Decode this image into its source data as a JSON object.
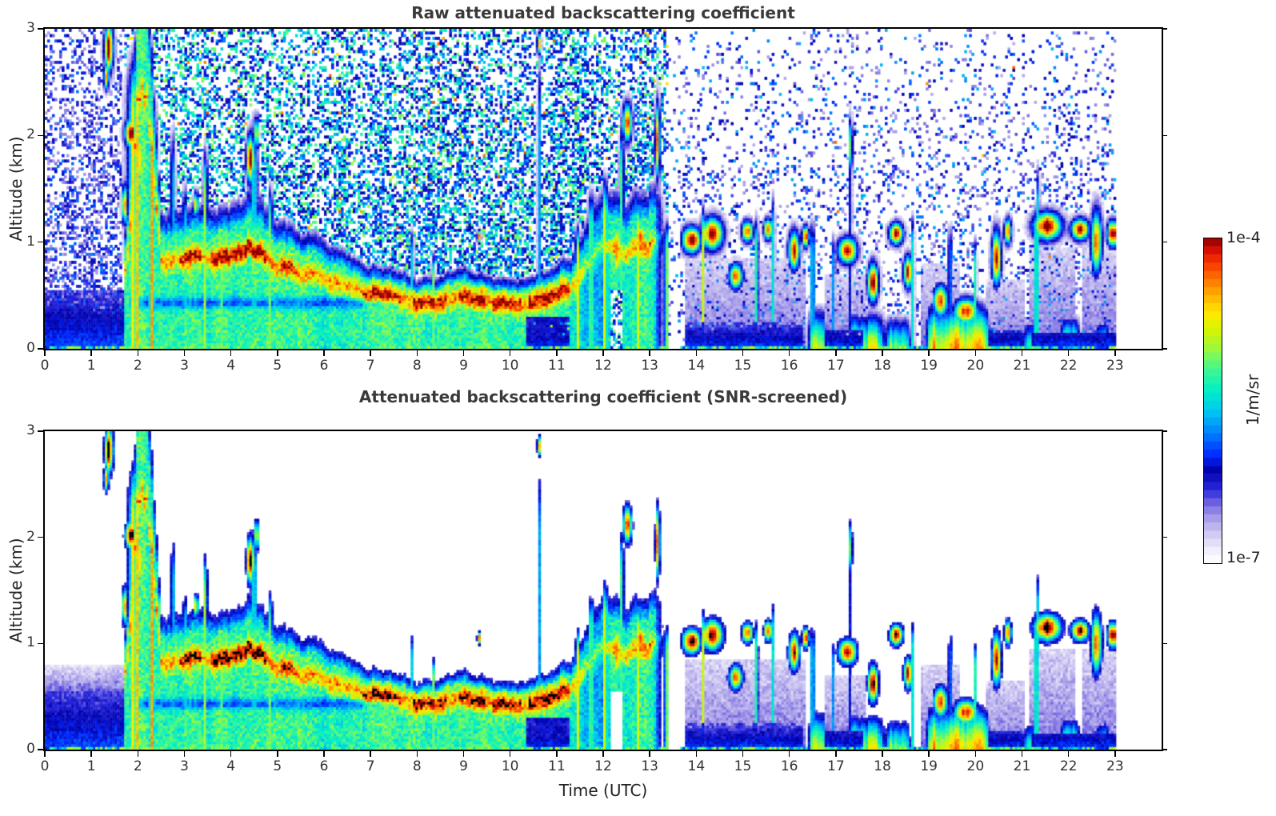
{
  "chart_data": {
    "type": "heatmap",
    "panels": [
      {
        "title": "Raw attenuated backscattering coefficient",
        "screened": false
      },
      {
        "title": "Attenuated backscattering coefficient (SNR-screened)",
        "screened": true
      }
    ],
    "x": {
      "label": "Time (UTC)",
      "lim": [
        0,
        24
      ],
      "data_end": 23.0,
      "ticks": [
        0,
        1,
        2,
        3,
        4,
        5,
        6,
        7,
        8,
        9,
        10,
        11,
        12,
        13,
        14,
        15,
        16,
        17,
        18,
        19,
        20,
        21,
        22,
        23
      ]
    },
    "y": {
      "label": "Altitude (km)",
      "lim": [
        0,
        3
      ],
      "ticks": [
        0,
        1,
        2,
        3
      ]
    },
    "colorbar": {
      "top_label": "1e-4",
      "bottom_label": "1e-7",
      "units_label": "1/m/sr",
      "scale": "log10",
      "range_1_per_m_sr": [
        1e-07,
        0.0001
      ],
      "steps": 40,
      "stops": [
        [
          0,
          "#ffffff"
        ],
        [
          0.045,
          "#efecfa"
        ],
        [
          0.09,
          "#cfc9f2"
        ],
        [
          0.14,
          "#a49ae8"
        ],
        [
          0.185,
          "#6f63e0"
        ],
        [
          0.225,
          "#2a2ae0"
        ],
        [
          0.285,
          "#0000a8"
        ],
        [
          0.33,
          "#0026ff"
        ],
        [
          0.4,
          "#0080ff"
        ],
        [
          0.47,
          "#00c8f0"
        ],
        [
          0.53,
          "#00eec8"
        ],
        [
          0.6,
          "#44f88c"
        ],
        [
          0.66,
          "#9cf83c"
        ],
        [
          0.72,
          "#d8f400"
        ],
        [
          0.77,
          "#ffe800"
        ],
        [
          0.82,
          "#ffb400"
        ],
        [
          0.87,
          "#ff7800"
        ],
        [
          0.92,
          "#f83c00"
        ],
        [
          0.96,
          "#dc1000"
        ],
        [
          1,
          "#8c0000"
        ]
      ],
      "overflow_color_screened": "#000000"
    },
    "features": {
      "boundary_layer_top_km": {
        "hours": [
          0,
          1,
          1.6,
          1.8,
          2.0,
          2.2,
          2.5,
          3,
          3.5,
          4,
          4.4,
          4.8,
          5,
          5.5,
          6,
          6.5,
          7,
          7.5,
          8,
          8.5,
          9,
          9.5,
          10,
          10.5,
          11,
          11.3,
          11.7,
          12,
          12.5,
          13,
          13.4
        ],
        "km": [
          0.5,
          0.5,
          0.55,
          1.2,
          2.9,
          2.9,
          1.05,
          1.0,
          1.05,
          1.05,
          1.15,
          1.05,
          0.95,
          0.85,
          0.8,
          0.7,
          0.64,
          0.6,
          0.55,
          0.56,
          0.6,
          0.55,
          0.5,
          0.55,
          0.6,
          0.7,
          1.0,
          1.2,
          1.1,
          1.25,
          1.2
        ],
        "active_hours": [
          1.72,
          13.4
        ],
        "peak_band_fraction": 0.82
      },
      "band_boosts": [
        [
          2.9,
          3.35,
          0.14
        ],
        [
          3.55,
          4.75,
          0.18
        ],
        [
          5.05,
          5.35,
          0.12
        ],
        [
          6.85,
          7.65,
          0.16
        ],
        [
          7.9,
          8.65,
          0.14
        ],
        [
          8.9,
          9.45,
          0.16
        ],
        [
          9.6,
          10.25,
          0.14
        ],
        [
          10.4,
          11.25,
          0.16
        ]
      ],
      "clouds": [
        [
          1.38,
          2.82,
          0.1,
          0.22,
          1.06
        ],
        [
          1.32,
          2.55,
          0.06,
          0.12,
          0.9
        ],
        [
          1.85,
          2.02,
          0.13,
          0.13,
          1.06
        ],
        [
          1.72,
          1.35,
          0.06,
          0.18,
          0.92
        ],
        [
          2.05,
          1.78,
          0.08,
          0.3,
          0.8
        ],
        [
          3.25,
          1.35,
          0.05,
          0.12,
          0.8
        ],
        [
          4.42,
          1.78,
          0.09,
          0.22,
          1.0
        ],
        [
          4.55,
          2.02,
          0.05,
          0.15,
          0.85
        ],
        [
          9.33,
          1.05,
          0.04,
          0.06,
          0.9
        ],
        [
          10.62,
          2.86,
          0.04,
          0.1,
          0.9
        ],
        [
          12.52,
          2.12,
          0.1,
          0.18,
          1.02
        ],
        [
          13.17,
          1.95,
          0.05,
          0.35,
          0.95
        ],
        [
          12.3,
          0.92,
          0.1,
          0.3,
          0.85
        ],
        [
          12.8,
          1.05,
          0.15,
          0.12,
          0.9
        ],
        [
          13.9,
          1.02,
          0.2,
          0.12,
          1.04
        ],
        [
          14.35,
          1.08,
          0.22,
          0.15,
          1.06
        ],
        [
          14.85,
          0.68,
          0.15,
          0.12,
          0.95
        ],
        [
          15.1,
          1.1,
          0.12,
          0.1,
          0.95
        ],
        [
          15.55,
          1.12,
          0.1,
          0.1,
          0.9
        ],
        [
          16.1,
          0.92,
          0.12,
          0.18,
          1.0
        ],
        [
          16.35,
          1.05,
          0.08,
          0.1,
          0.9
        ],
        [
          17.25,
          0.92,
          0.2,
          0.12,
          1.03
        ],
        [
          17.32,
          1.9,
          0.03,
          0.25,
          0.95
        ],
        [
          17.8,
          0.62,
          0.12,
          0.18,
          0.95
        ],
        [
          18.3,
          1.08,
          0.15,
          0.1,
          1.04
        ],
        [
          18.55,
          0.72,
          0.1,
          0.15,
          0.9
        ],
        [
          19.25,
          0.45,
          0.15,
          0.15,
          1.0
        ],
        [
          19.8,
          0.35,
          0.25,
          0.12,
          1.0
        ],
        [
          20.45,
          0.85,
          0.1,
          0.25,
          1.0
        ],
        [
          20.7,
          1.1,
          0.08,
          0.12,
          0.9
        ],
        [
          21.55,
          1.15,
          0.3,
          0.13,
          1.06
        ],
        [
          22.25,
          1.12,
          0.2,
          0.1,
          1.0
        ],
        [
          22.6,
          1.0,
          0.12,
          0.3,
          0.9
        ],
        [
          22.95,
          1.08,
          0.12,
          0.12,
          1.06
        ]
      ],
      "updrafts": [
        [
          1.95,
          3.0,
          0.18,
          0.72
        ],
        [
          2.3,
          2.6,
          0.1,
          0.68
        ],
        [
          2.75,
          2.25,
          0.05,
          0.62
        ],
        [
          3.0,
          1.65,
          0.04,
          0.6
        ],
        [
          3.45,
          2.05,
          0.05,
          0.62
        ],
        [
          3.8,
          1.4,
          0.04,
          0.58
        ],
        [
          4.5,
          2.35,
          0.07,
          0.66
        ],
        [
          4.85,
          1.65,
          0.05,
          0.6
        ],
        [
          5.2,
          1.3,
          0.04,
          0.55
        ],
        [
          7.9,
          1.2,
          0.03,
          0.55
        ],
        [
          8.35,
          0.95,
          0.04,
          0.55
        ],
        [
          10.62,
          2.95,
          0.03,
          0.6
        ],
        [
          11.45,
          1.25,
          0.06,
          0.68
        ],
        [
          11.75,
          1.6,
          0.07,
          0.7
        ],
        [
          12.05,
          1.75,
          0.06,
          0.68
        ],
        [
          12.4,
          2.3,
          0.05,
          0.66
        ],
        [
          12.75,
          1.55,
          0.05,
          0.66
        ],
        [
          13.35,
          1.3,
          0.05,
          0.6
        ],
        [
          14.15,
          1.45,
          0.04,
          0.62
        ],
        [
          15.3,
          1.35,
          0.04,
          0.58
        ],
        [
          15.65,
          1.55,
          0.035,
          0.55
        ],
        [
          16.5,
          1.3,
          0.04,
          0.62
        ],
        [
          16.95,
          1.15,
          0.035,
          0.58
        ],
        [
          17.32,
          2.2,
          0.025,
          0.6
        ],
        [
          18.65,
          1.35,
          0.035,
          0.58
        ],
        [
          19.45,
          1.25,
          0.035,
          0.55
        ],
        [
          20.0,
          1.1,
          0.03,
          0.55
        ],
        [
          21.3,
          1.45,
          0.04,
          0.58
        ],
        [
          21.35,
          1.85,
          0.03,
          0.55
        ],
        [
          23.05,
          1.25,
          0.04,
          0.6
        ]
      ],
      "surface_patches": [
        [
          16.45,
          16.75,
          0.45,
          0.72
        ],
        [
          17.3,
          18.0,
          0.4,
          0.68
        ],
        [
          18.1,
          18.55,
          0.35,
          0.65
        ],
        [
          19.0,
          20.25,
          0.5,
          0.8
        ],
        [
          21.05,
          21.35,
          0.3,
          0.6
        ],
        [
          21.85,
          22.2,
          0.35,
          0.72
        ],
        [
          22.6,
          22.85,
          0.3,
          0.65
        ]
      ],
      "attenuated_zones": [
        [
          13.75,
          16.35,
          0.85
        ],
        [
          16.75,
          17.65,
          0.7
        ],
        [
          18.85,
          19.65,
          0.8
        ],
        [
          20.25,
          21.05,
          0.65
        ],
        [
          21.15,
          22.15,
          0.95
        ],
        [
          22.3,
          23.05,
          0.95
        ]
      ],
      "surface_dark_bands": [
        [
          10.35,
          11.25,
          0.3
        ],
        [
          13.75,
          16.3,
          0.25
        ],
        [
          16.8,
          17.6,
          0.18
        ],
        [
          20.3,
          21.0,
          0.18
        ],
        [
          21.2,
          23.0,
          0.15
        ]
      ],
      "gaps": [
        [
          12.15,
          12.4,
          0.55
        ],
        [
          13.42,
          13.68,
          1.5
        ]
      ],
      "cyan_notch": {
        "h0": 1.8,
        "h1": 7.6,
        "z": 0.43,
        "w": 0.05,
        "depth": 0.2
      },
      "surface_weak_layer": {
        "h_end": 1.72,
        "z_top": 0.55,
        "z_fade": 0.8
      },
      "noise_eras": [
        {
          "h0": 0,
          "h1": 1.72,
          "p_low": 0.5,
          "p_high": 0.26,
          "v_min": 0.13,
          "v_max": 0.4,
          "hot_prob": 0,
          "z_ref": 0.8
        },
        {
          "h0": 1.72,
          "h1": 13.4,
          "p_low": 0.55,
          "p_high": 0.34,
          "v_min": 0.24,
          "v_max": 0.66,
          "hot_prob": 0.012,
          "z_ref": 1.0
        },
        {
          "h0": 13.4,
          "h1": 23.0,
          "p_low": 0.17,
          "p_high": 0.07,
          "v_min": 0.12,
          "v_max": 0.46,
          "hot_prob": 0.002,
          "z_ref": 1.2
        }
      ]
    }
  }
}
